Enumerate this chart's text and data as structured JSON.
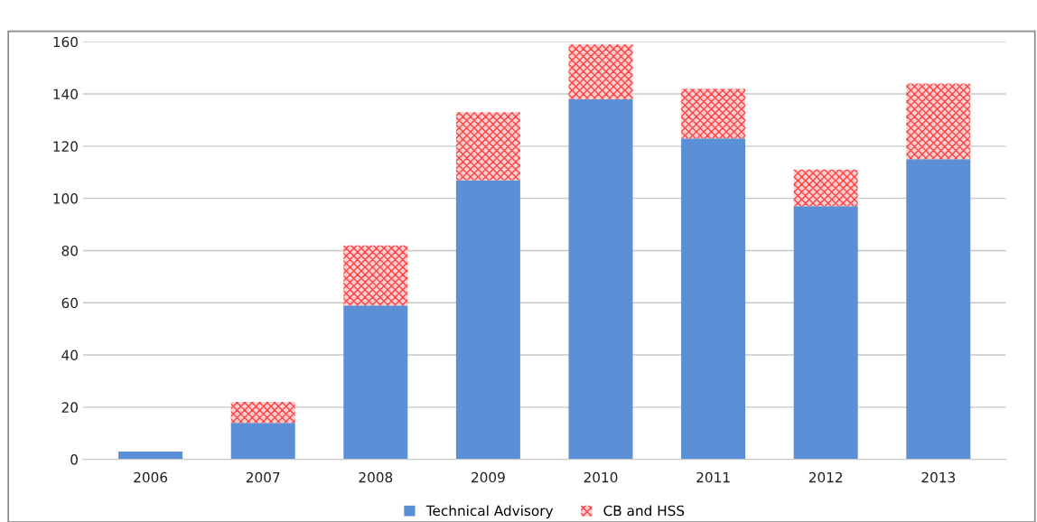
{
  "chart_data": {
    "type": "bar",
    "stacked": true,
    "categories": [
      "2006",
      "2007",
      "2008",
      "2009",
      "2010",
      "2011",
      "2012",
      "2013"
    ],
    "series": [
      {
        "name": "Technical Advisory",
        "color": "#5b8fd6",
        "values": [
          3,
          14,
          59,
          107,
          138,
          123,
          97,
          115
        ]
      },
      {
        "name": "CB and HSS",
        "color": "#ff4040",
        "values": [
          0,
          8,
          23,
          26,
          21,
          19,
          14,
          29
        ]
      }
    ],
    "ylim": [
      0,
      160
    ],
    "yticks": [
      0,
      20,
      40,
      60,
      80,
      100,
      120,
      140,
      160
    ],
    "grid": "y",
    "legend": "bottom"
  }
}
